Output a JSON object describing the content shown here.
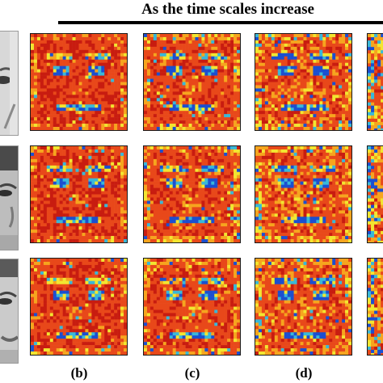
{
  "header": {
    "title": "As the time scales increase"
  },
  "panels": {
    "rows": 3,
    "columns": [
      "(b)",
      "(c)",
      "(d)"
    ]
  },
  "colors": {
    "hot": "#c81c10",
    "warm": "#e8481a",
    "mid": "#f6a51e",
    "yellow": "#f2e630",
    "cool": "#39b8d8",
    "cold": "#1b4fd0",
    "frame": "#1a1a1a"
  },
  "icons": {
    "face": "grayscale-face-photo",
    "map": "heatmap-face-panel"
  }
}
